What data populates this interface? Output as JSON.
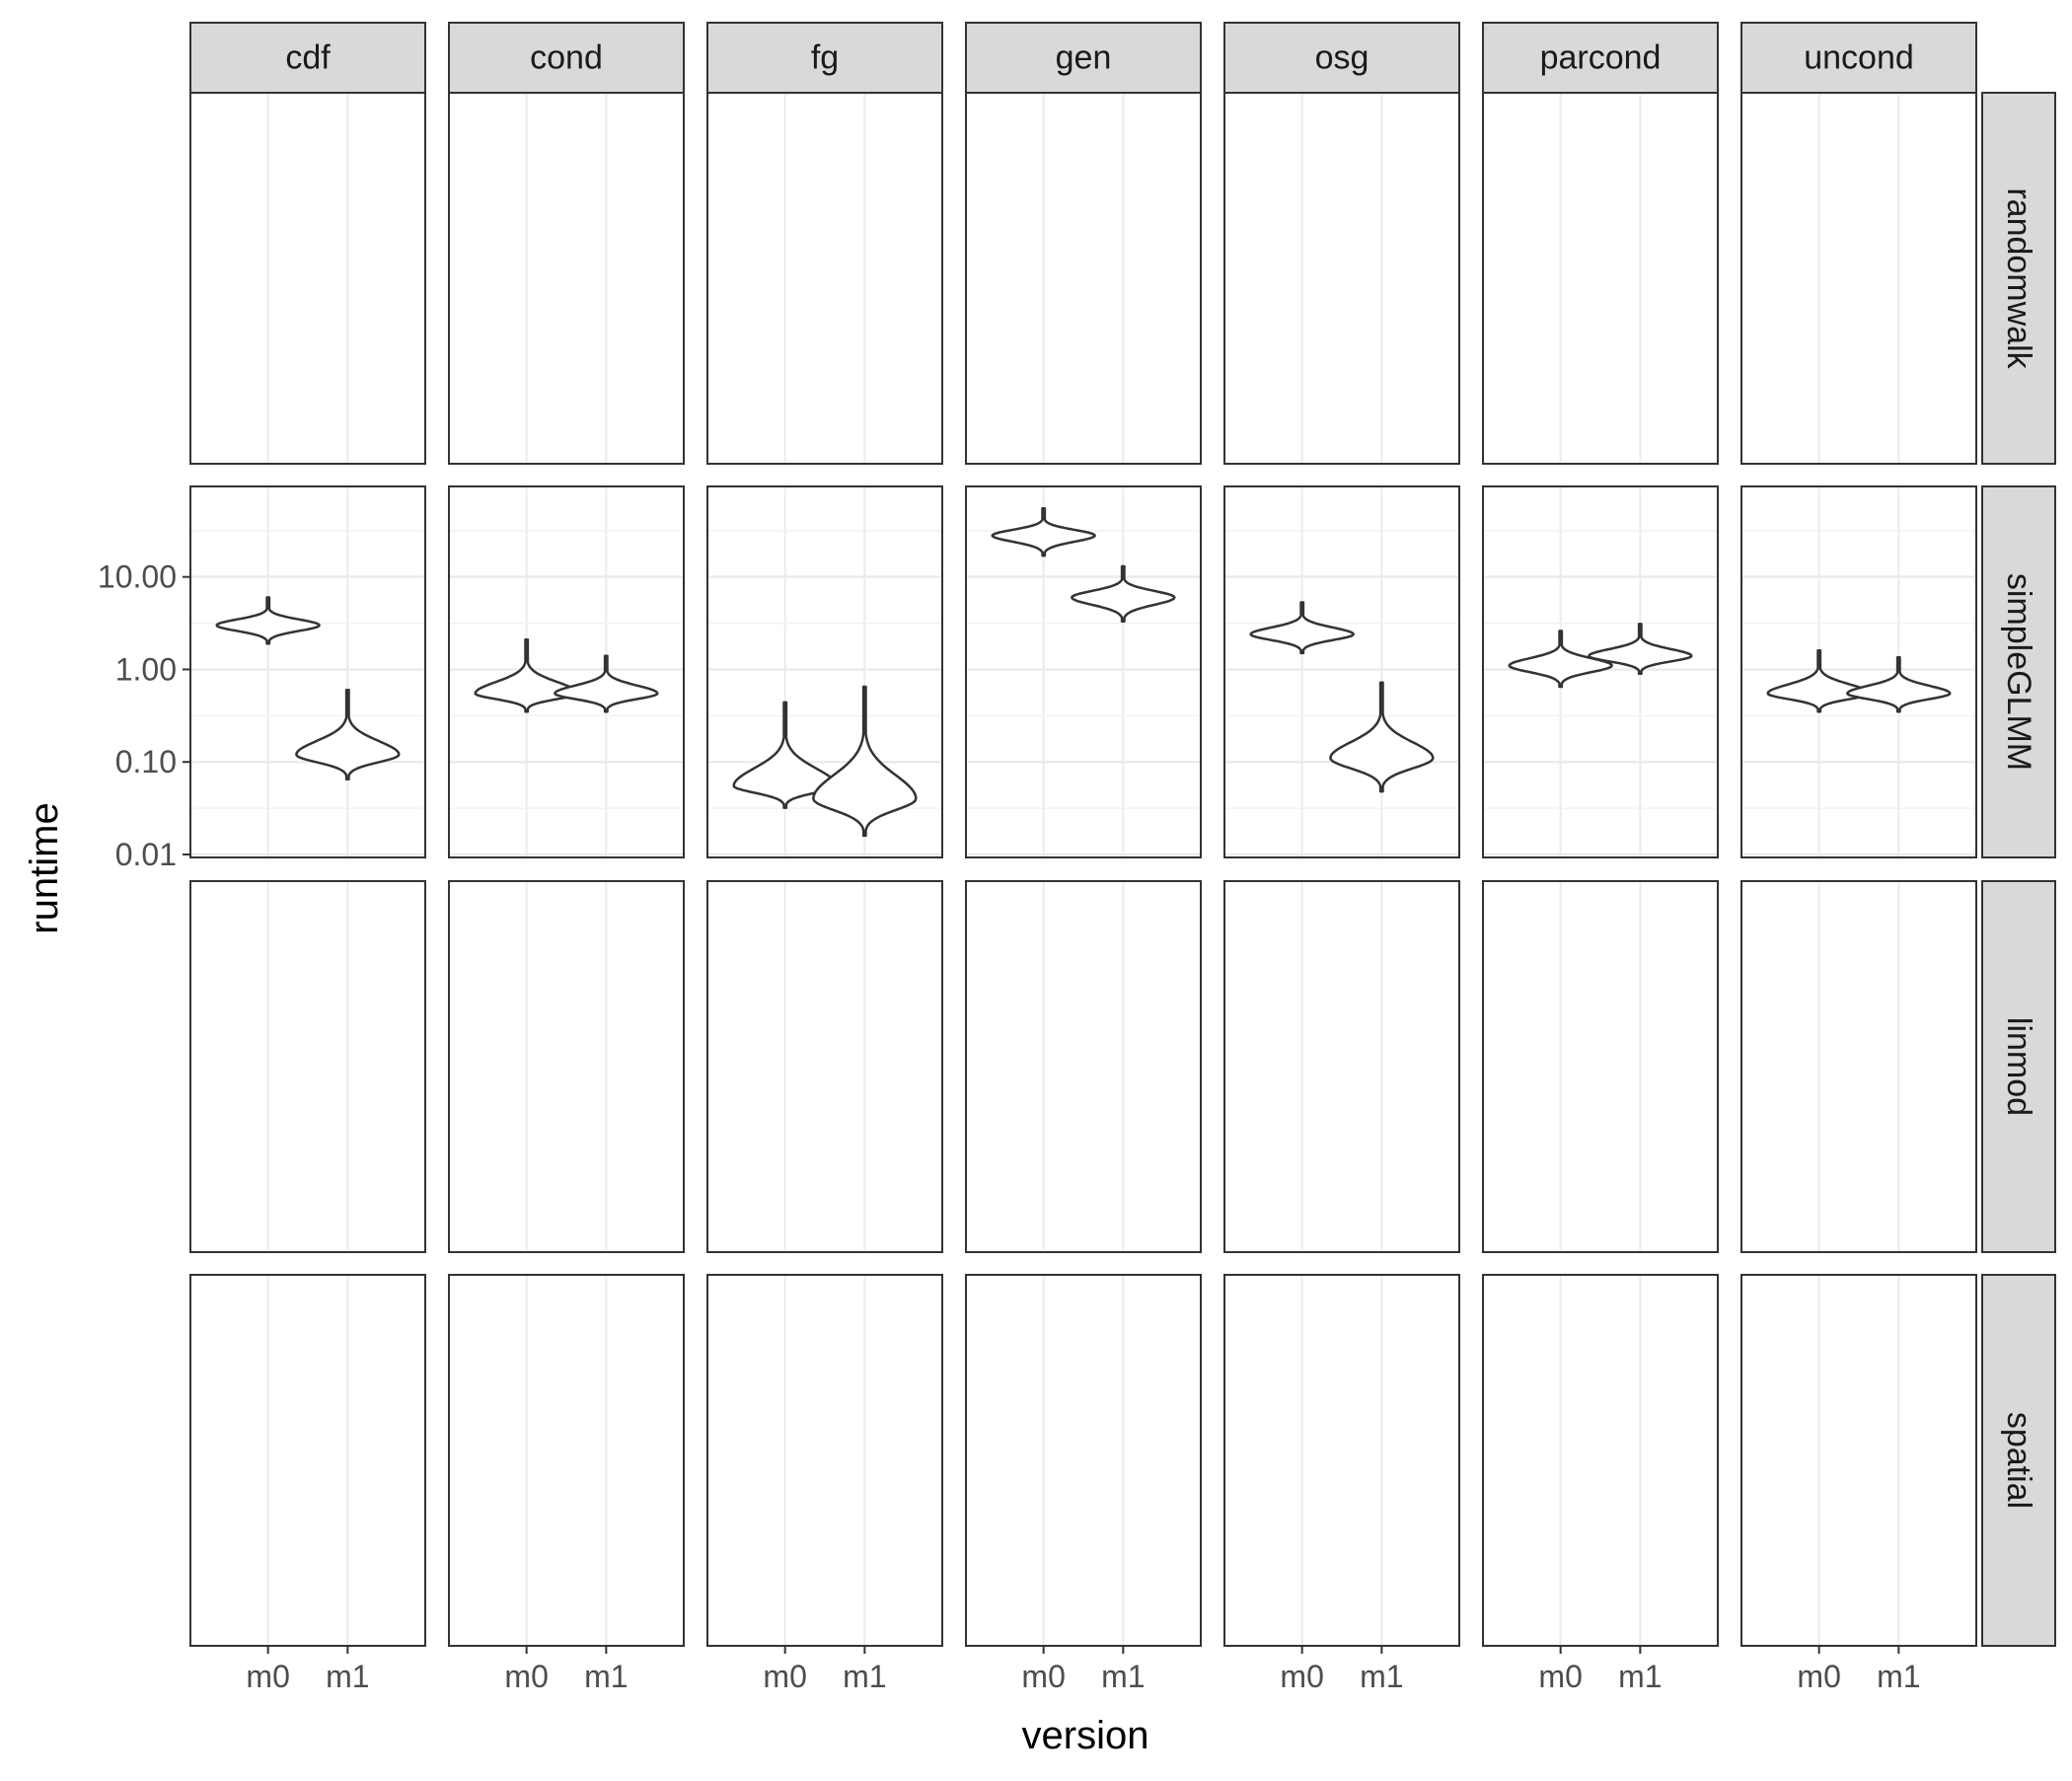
{
  "chart_data": {
    "type": "violin",
    "xlabel": "version",
    "ylabel": "runtime",
    "y_scale": "log10",
    "ylim": [
      0.01,
      80
    ],
    "y_ticks": [
      0.01,
      0.1,
      1,
      10
    ],
    "y_tick_labels": [
      "0.01",
      "0.10",
      "1.00",
      "10.00"
    ],
    "x_categories": [
      "m0",
      "m1"
    ],
    "columns": [
      "cdf",
      "cond",
      "fg",
      "gen",
      "osg",
      "parcond",
      "uncond"
    ],
    "rows": [
      "randomwalk",
      "simpleGLMM",
      "linmod",
      "spatial"
    ],
    "grid": true,
    "violins": [
      {
        "row": "simpleGLMM",
        "col": "cdf",
        "x": "m0",
        "median": 3.0,
        "min": 1.9,
        "max": 6.0
      },
      {
        "row": "simpleGLMM",
        "col": "cdf",
        "x": "m1",
        "median": 0.12,
        "min": 0.065,
        "max": 0.6
      },
      {
        "row": "simpleGLMM",
        "col": "cond",
        "x": "m0",
        "median": 0.55,
        "min": 0.35,
        "max": 2.1
      },
      {
        "row": "simpleGLMM",
        "col": "cond",
        "x": "m1",
        "median": 0.55,
        "min": 0.35,
        "max": 1.4
      },
      {
        "row": "simpleGLMM",
        "col": "fg",
        "x": "m0",
        "median": 0.055,
        "min": 0.032,
        "max": 0.44
      },
      {
        "row": "simpleGLMM",
        "col": "fg",
        "x": "m1",
        "median": 0.04,
        "min": 0.016,
        "max": 0.65
      },
      {
        "row": "simpleGLMM",
        "col": "gen",
        "x": "m0",
        "median": 28.0,
        "min": 17.0,
        "max": 55.0
      },
      {
        "row": "simpleGLMM",
        "col": "gen",
        "x": "m1",
        "median": 6.0,
        "min": 3.3,
        "max": 13.0
      },
      {
        "row": "simpleGLMM",
        "col": "osg",
        "x": "m0",
        "median": 2.4,
        "min": 1.5,
        "max": 5.3
      },
      {
        "row": "simpleGLMM",
        "col": "osg",
        "x": "m1",
        "median": 0.11,
        "min": 0.048,
        "max": 0.72
      },
      {
        "row": "simpleGLMM",
        "col": "parcond",
        "x": "m0",
        "median": 1.1,
        "min": 0.65,
        "max": 2.6
      },
      {
        "row": "simpleGLMM",
        "col": "parcond",
        "x": "m1",
        "median": 1.4,
        "min": 0.9,
        "max": 3.1
      },
      {
        "row": "simpleGLMM",
        "col": "uncond",
        "x": "m0",
        "median": 0.55,
        "min": 0.35,
        "max": 1.6
      },
      {
        "row": "simpleGLMM",
        "col": "uncond",
        "x": "m1",
        "median": 0.55,
        "min": 0.35,
        "max": 1.35
      }
    ]
  }
}
